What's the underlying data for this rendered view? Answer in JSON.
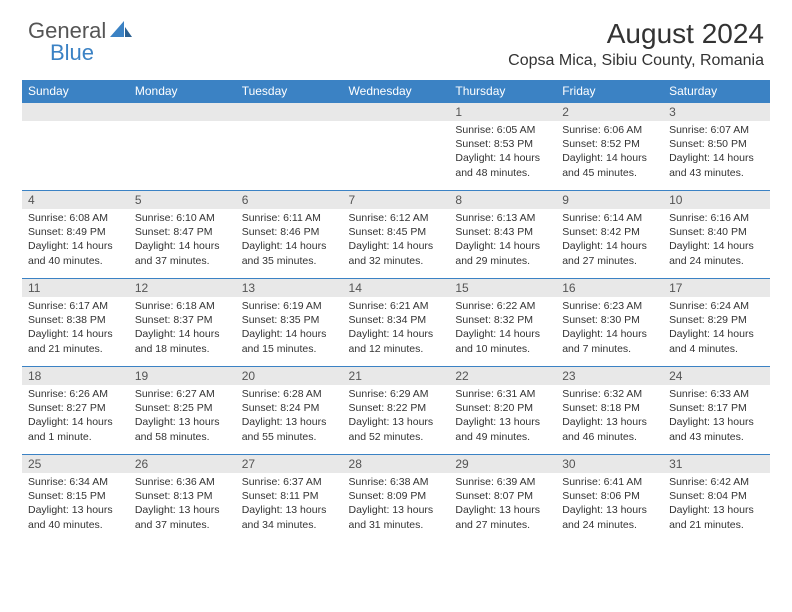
{
  "logo": {
    "word1": "General",
    "word2": "Blue"
  },
  "title": "August 2024",
  "location": "Copsa Mica, Sibiu County, Romania",
  "colors": {
    "header_bg": "#3b82c4",
    "header_text": "#ffffff",
    "daynum_bg": "#e8e8e8",
    "border": "#3b82c4",
    "body_text": "#333333"
  },
  "weekdays": [
    "Sunday",
    "Monday",
    "Tuesday",
    "Wednesday",
    "Thursday",
    "Friday",
    "Saturday"
  ],
  "grid": [
    [
      null,
      null,
      null,
      null,
      {
        "n": "1",
        "sunrise": "6:05 AM",
        "sunset": "8:53 PM",
        "dl": "14 hours and 48 minutes."
      },
      {
        "n": "2",
        "sunrise": "6:06 AM",
        "sunset": "8:52 PM",
        "dl": "14 hours and 45 minutes."
      },
      {
        "n": "3",
        "sunrise": "6:07 AM",
        "sunset": "8:50 PM",
        "dl": "14 hours and 43 minutes."
      }
    ],
    [
      {
        "n": "4",
        "sunrise": "6:08 AM",
        "sunset": "8:49 PM",
        "dl": "14 hours and 40 minutes."
      },
      {
        "n": "5",
        "sunrise": "6:10 AM",
        "sunset": "8:47 PM",
        "dl": "14 hours and 37 minutes."
      },
      {
        "n": "6",
        "sunrise": "6:11 AM",
        "sunset": "8:46 PM",
        "dl": "14 hours and 35 minutes."
      },
      {
        "n": "7",
        "sunrise": "6:12 AM",
        "sunset": "8:45 PM",
        "dl": "14 hours and 32 minutes."
      },
      {
        "n": "8",
        "sunrise": "6:13 AM",
        "sunset": "8:43 PM",
        "dl": "14 hours and 29 minutes."
      },
      {
        "n": "9",
        "sunrise": "6:14 AM",
        "sunset": "8:42 PM",
        "dl": "14 hours and 27 minutes."
      },
      {
        "n": "10",
        "sunrise": "6:16 AM",
        "sunset": "8:40 PM",
        "dl": "14 hours and 24 minutes."
      }
    ],
    [
      {
        "n": "11",
        "sunrise": "6:17 AM",
        "sunset": "8:38 PM",
        "dl": "14 hours and 21 minutes."
      },
      {
        "n": "12",
        "sunrise": "6:18 AM",
        "sunset": "8:37 PM",
        "dl": "14 hours and 18 minutes."
      },
      {
        "n": "13",
        "sunrise": "6:19 AM",
        "sunset": "8:35 PM",
        "dl": "14 hours and 15 minutes."
      },
      {
        "n": "14",
        "sunrise": "6:21 AM",
        "sunset": "8:34 PM",
        "dl": "14 hours and 12 minutes."
      },
      {
        "n": "15",
        "sunrise": "6:22 AM",
        "sunset": "8:32 PM",
        "dl": "14 hours and 10 minutes."
      },
      {
        "n": "16",
        "sunrise": "6:23 AM",
        "sunset": "8:30 PM",
        "dl": "14 hours and 7 minutes."
      },
      {
        "n": "17",
        "sunrise": "6:24 AM",
        "sunset": "8:29 PM",
        "dl": "14 hours and 4 minutes."
      }
    ],
    [
      {
        "n": "18",
        "sunrise": "6:26 AM",
        "sunset": "8:27 PM",
        "dl": "14 hours and 1 minute."
      },
      {
        "n": "19",
        "sunrise": "6:27 AM",
        "sunset": "8:25 PM",
        "dl": "13 hours and 58 minutes."
      },
      {
        "n": "20",
        "sunrise": "6:28 AM",
        "sunset": "8:24 PM",
        "dl": "13 hours and 55 minutes."
      },
      {
        "n": "21",
        "sunrise": "6:29 AM",
        "sunset": "8:22 PM",
        "dl": "13 hours and 52 minutes."
      },
      {
        "n": "22",
        "sunrise": "6:31 AM",
        "sunset": "8:20 PM",
        "dl": "13 hours and 49 minutes."
      },
      {
        "n": "23",
        "sunrise": "6:32 AM",
        "sunset": "8:18 PM",
        "dl": "13 hours and 46 minutes."
      },
      {
        "n": "24",
        "sunrise": "6:33 AM",
        "sunset": "8:17 PM",
        "dl": "13 hours and 43 minutes."
      }
    ],
    [
      {
        "n": "25",
        "sunrise": "6:34 AM",
        "sunset": "8:15 PM",
        "dl": "13 hours and 40 minutes."
      },
      {
        "n": "26",
        "sunrise": "6:36 AM",
        "sunset": "8:13 PM",
        "dl": "13 hours and 37 minutes."
      },
      {
        "n": "27",
        "sunrise": "6:37 AM",
        "sunset": "8:11 PM",
        "dl": "13 hours and 34 minutes."
      },
      {
        "n": "28",
        "sunrise": "6:38 AM",
        "sunset": "8:09 PM",
        "dl": "13 hours and 31 minutes."
      },
      {
        "n": "29",
        "sunrise": "6:39 AM",
        "sunset": "8:07 PM",
        "dl": "13 hours and 27 minutes."
      },
      {
        "n": "30",
        "sunrise": "6:41 AM",
        "sunset": "8:06 PM",
        "dl": "13 hours and 24 minutes."
      },
      {
        "n": "31",
        "sunrise": "6:42 AM",
        "sunset": "8:04 PM",
        "dl": "13 hours and 21 minutes."
      }
    ]
  ],
  "labels": {
    "sunrise": "Sunrise: ",
    "sunset": "Sunset: ",
    "daylight": "Daylight: "
  }
}
